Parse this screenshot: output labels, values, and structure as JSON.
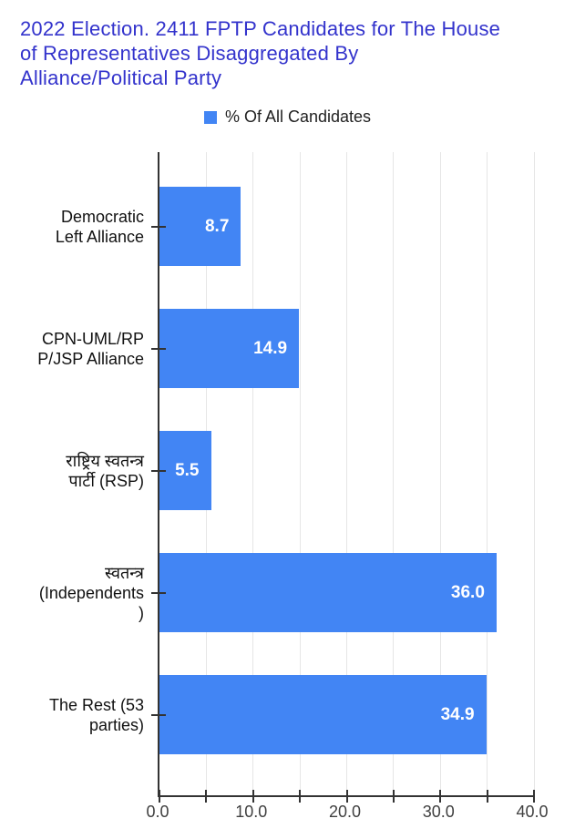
{
  "title": {
    "text": "2022 Election. 2411 FPTP Candidates for The House of Representatives Disaggregated By Alliance/Political Party",
    "lines": [
      "2022 Election. 2411 FPTP Candidates for The House",
      "of Representatives Disaggregated By",
      "Alliance/Political Party"
    ],
    "color": "#3333cc"
  },
  "legend": {
    "label": "% Of All Candidates",
    "swatch_color": "#4285f4"
  },
  "chart_data": {
    "type": "bar",
    "orientation": "horizontal",
    "title": "2022 Election. 2411 FPTP Candidates for The House of Representatives Disaggregated By Alliance/Political Party",
    "series_name": "% Of All Candidates",
    "legend_position": "top",
    "grid": true,
    "categories": [
      "Democratic Left Alliance",
      "CPN-UML/RPP/JSP Alliance",
      "राष्ट्रिय स्वतन्त्र पार्टी (RSP)",
      "स्वतन्त्र (Independents)",
      "The Rest (53 parties)"
    ],
    "category_display_lines": [
      [
        "Democratic",
        "Left Alliance"
      ],
      [
        "CPN-UML/RP",
        "P/JSP Alliance"
      ],
      [
        "राष्ट्रिय स्वतन्त्र",
        "पार्टी (RSP)"
      ],
      [
        "स्वतन्त्र",
        "(Independents",
        ")"
      ],
      [
        "The Rest (53",
        "parties)"
      ]
    ],
    "values": [
      8.7,
      14.9,
      5.5,
      36.0,
      34.9
    ],
    "value_labels": [
      "8.7",
      "14.9",
      "5.5",
      "36.0",
      "34.9"
    ],
    "xlabel": "",
    "ylabel": "",
    "xlim": [
      0,
      40
    ],
    "x_tick_values": [
      0,
      10,
      20,
      30,
      40
    ],
    "x_tick_labels": [
      "0.0",
      "10.0",
      "20.0",
      "30.0",
      "40.0"
    ],
    "minor_tick_step": 5,
    "bar_color": "#4285f4",
    "annotation_color": "#ffffff",
    "gridline_color": "#e6e6e6",
    "axis_color": "#333333"
  }
}
